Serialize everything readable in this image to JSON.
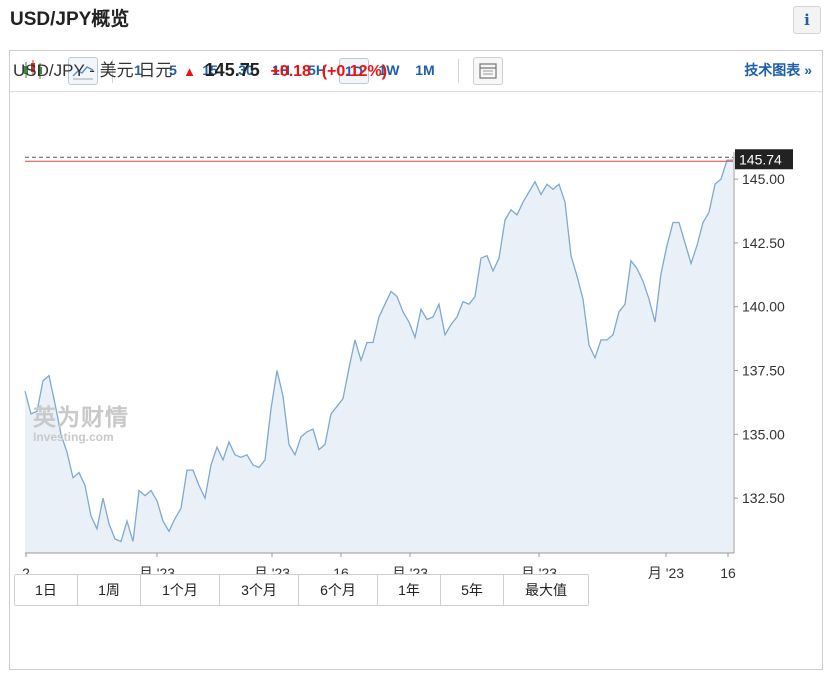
{
  "page": {
    "title": "USD/JPY概览",
    "info_label": "i"
  },
  "toolbar": {
    "timeframes": [
      "1",
      "5",
      "15",
      "30",
      "1H",
      "5H",
      "1D",
      "1W",
      "1M"
    ],
    "active_timeframe": "1D",
    "tech_link": "技术图表 »",
    "icons": [
      "candlestick-icon",
      "area-chart-icon",
      "news-layout-icon"
    ]
  },
  "quote": {
    "pair": "USD/JPY - 美元 日元",
    "arrow": "▲",
    "last": "145.75",
    "change": "+0.18",
    "change_pct": "(+0.12%)"
  },
  "watermark": {
    "cn": "英为财情",
    "en": "Investing.com"
  },
  "ranges": [
    "1日",
    "1周",
    "1个月",
    "3个月",
    "6个月",
    "1年",
    "5年",
    "最大值"
  ],
  "colors": {
    "line": "#7fa9d1",
    "area": "#e9f0f8",
    "price_line": "#e04040",
    "accent": "#1f5fa8",
    "up": "#e11111"
  },
  "chart_data": {
    "type": "area",
    "ylim": [
      130.35,
      145.75
    ],
    "yticks": [
      "132.50",
      "135.00",
      "137.50",
      "140.00",
      "142.50",
      "145.00"
    ],
    "last_price_label": "145.74",
    "xtick_labels": [
      "2",
      "月 '23",
      "月 '23",
      "16",
      "月 '23",
      "月 '23",
      "月 '23",
      "16"
    ],
    "values": [
      136.7,
      135.8,
      135.9,
      137.1,
      137.3,
      136.2,
      135.0,
      134.3,
      133.3,
      133.5,
      133.0,
      131.8,
      131.3,
      132.5,
      131.5,
      130.9,
      130.8,
      131.6,
      130.8,
      132.8,
      132.6,
      132.8,
      132.4,
      131.6,
      131.2,
      131.7,
      132.1,
      133.6,
      133.6,
      133.0,
      132.5,
      133.8,
      134.5,
      134.0,
      134.7,
      134.2,
      134.1,
      134.2,
      133.8,
      133.7,
      134.0,
      136.0,
      137.5,
      136.5,
      134.6,
      134.2,
      134.9,
      135.1,
      135.2,
      134.4,
      134.6,
      135.8,
      136.1,
      136.4,
      137.6,
      138.7,
      137.9,
      138.6,
      138.6,
      139.6,
      140.1,
      140.6,
      140.4,
      139.8,
      139.4,
      138.8,
      139.9,
      139.5,
      139.6,
      140.1,
      138.9,
      139.3,
      139.6,
      140.2,
      140.1,
      140.4,
      141.9,
      142.0,
      141.4,
      141.9,
      143.4,
      143.8,
      143.6,
      144.1,
      144.5,
      144.9,
      144.4,
      144.8,
      144.6,
      144.8,
      144.1,
      142.0,
      141.2,
      140.3,
      138.5,
      138.0,
      138.7,
      138.7,
      138.9,
      139.8,
      140.1,
      141.8,
      141.5,
      141.0,
      140.3,
      139.4,
      141.3,
      142.4,
      143.3,
      143.3,
      142.5,
      141.7,
      142.4,
      143.3,
      143.7,
      144.8,
      145.0,
      145.74,
      145.75
    ]
  }
}
